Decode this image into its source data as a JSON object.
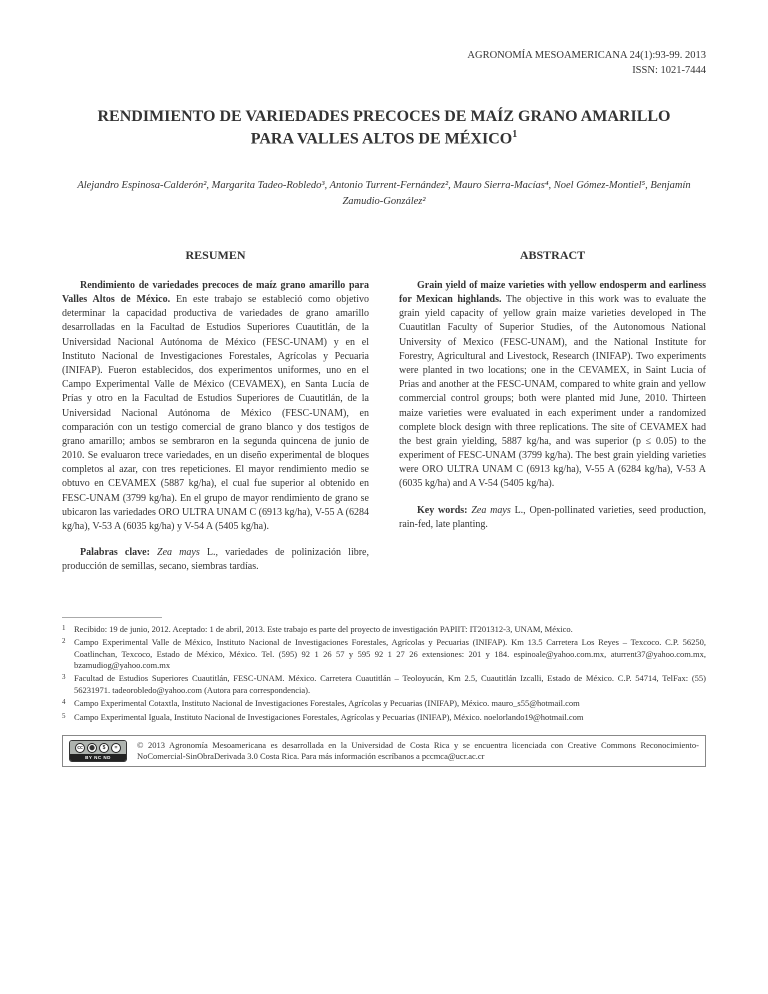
{
  "header": {
    "journal": "AGRONOMÍA MESOAMERICANA 24(1):93-99. 2013",
    "issn": "ISSN: 1021-7444"
  },
  "title": "RENDIMIENTO DE VARIEDADES PRECOCES DE MAÍZ GRANO AMARILLO PARA VALLES ALTOS DE MÉXICO",
  "title_sup": "1",
  "authors": "Alejandro Espinosa-Calderón², Margarita Tadeo-Robledo³, Antonio Turrent-Fernández², Mauro Sierra-Macías⁴, Noel Gómez-Montiel⁵, Benjamín Zamudio-González²",
  "resumen": {
    "heading": "RESUMEN",
    "p1_bold": "Rendimiento de variedades precoces de maíz grano amarillo para Valles Altos de México.",
    "p1_rest": " En este trabajo se estableció como objetivo determinar la capacidad productiva de variedades de grano amarillo desarrolladas en la Facultad de Estudios Superiores Cuautitlán, de la Universidad Nacional Autónoma de México (FESC-UNAM) y en el Instituto Nacional de Investigaciones Forestales, Agrícolas y Pecuaria (INIFAP). Fueron establecidos, dos experimentos uniformes, uno en el Campo Experimental Valle de México (CEVAMEX), en Santa Lucía de Prías y otro en la Facultad de Estudios Superiores de Cuautitlán, de la Universidad Nacional Autónoma de México (FESC-UNAM), en comparación con un testigo comercial de grano blanco y dos testigos de grano amarillo; ambos se sembraron en la segunda quincena de junio de 2010. Se evaluaron trece variedades, en un diseño experimental de bloques completos al azar, con tres repeticiones. El mayor rendimiento medio se obtuvo en CEVAMEX (5887 kg/ha), el cual fue superior al obtenido en FESC-UNAM (3799 kg/ha). En el grupo de mayor rendimiento de grano se ubicaron las variedades ORO ULTRA UNAM C (6913 kg/ha), V-55 A (6284 kg/ha), V-53 A (6035 kg/ha) y V-54 A (5405 kg/ha).",
    "p2_bold": "Palabras clave:",
    "p2_italic": " Zea mays",
    "p2_rest": " L., variedades de polinización libre, producción de semillas, secano, siembras tardías."
  },
  "abstract": {
    "heading": "ABSTRACT",
    "p1_bold": "Grain yield of maize varieties with yellow endosperm and earliness for Mexican highlands.",
    "p1_rest": " The objective in this work was to evaluate the grain yield capacity of yellow grain maize varieties developed in The Cuautitlan Faculty of Superior Studies, of the Autonomous National University of Mexico (FESC-UNAM), and the National Institute for Forestry, Agricultural and Livestock, Research (INIFAP). Two experiments were planted in two locations; one in the CEVAMEX, in Saint Lucia of Prias and another at the FESC-UNAM, compared to white grain and yellow commercial control groups; both were planted mid June, 2010. Thirteen maize varieties were evaluated in each experiment under a randomized complete block design with three replications. The site of CEVAMEX had the best grain yielding, 5887 kg/ha, and was superior (p ≤ 0.05) to the experiment of FESC-UNAM (3799 kg/ha). The best grain yielding varieties were ORO ULTRA UNAM C (6913 kg/ha), V-55 A (6284 kg/ha), V-53 A (6035 kg/ha) and A V-54 (5405 kg/ha).",
    "p2_bold": "Key words:",
    "p2_italic": " Zea mays",
    "p2_rest": " L., Open-pollinated varieties, seed production, rain-fed, late planting."
  },
  "footnotes": [
    {
      "n": "1",
      "t": "Recibido: 19 de junio, 2012. Aceptado: 1 de abril, 2013. Este trabajo es parte del proyecto de investigación PAPIIT: IT201312-3, UNAM, México."
    },
    {
      "n": "2",
      "t": "Campo Experimental Valle de México, Instituto Nacional de Investigaciones Forestales, Agrícolas y Pecuarias (INIFAP). Km 13.5 Carretera Los Reyes – Texcoco. C.P. 56250, Coatlinchan, Texcoco, Estado de México, México. Tel. (595) 92 1 26 57 y 595 92 1 27 26 extensiones: 201 y 184. espinoale@yahoo.com.mx, aturrent37@yahoo.com.mx, bzamudiog@yahoo.com.mx"
    },
    {
      "n": "3",
      "t": "Facultad de Estudios Superiores Cuautitlán, FESC-UNAM. México. Carretera Cuautitlán – Teoloyucán, Km 2.5, Cuautitlán Izcalli, Estado de México. C.P. 54714, TelFax: (55) 56231971. tadeorobledo@yahoo.com (Autora para correspondencia)."
    },
    {
      "n": "4",
      "t": "Campo Experimental Cotaxtla, Instituto Nacional de Investigaciones Forestales, Agrícolas y Pecuarias (INIFAP), México. mauro_s55@hotmail.com"
    },
    {
      "n": "5",
      "t": "Campo Experimental Iguala, Instituto Nacional de Investigaciones Forestales, Agrícolas y Pecuarias (INIFAP), México. noelorlando19@hotmail.com"
    }
  ],
  "license": "© 2013 Agronomía Mesoamericana es desarrollada en la Universidad de Costa Rica y se encuentra licenciada con Creative Commons Reconocimiento-NoComercial-SinObraDerivada 3.0 Costa Rica. Para más información escríbanos a pccmca@ucr.ac.cr",
  "cc_label": "BY   NC   ND"
}
